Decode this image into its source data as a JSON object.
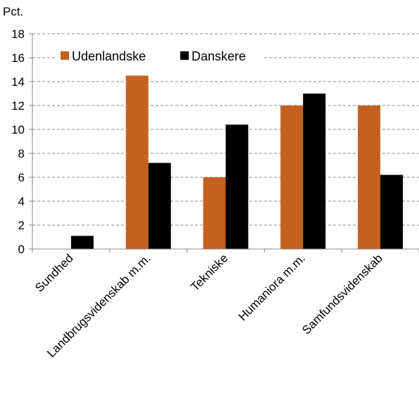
{
  "chart_data": {
    "type": "bar",
    "ylabel": "Pct.",
    "xlabel": "",
    "ylim": [
      0,
      18
    ],
    "yticks": [
      0,
      2,
      4,
      6,
      8,
      10,
      12,
      14,
      16,
      18
    ],
    "grid": true,
    "legend_position": "top-left",
    "categories": [
      "Sundhed",
      "Landbrugsvidenskab m.m.",
      "Tekniske",
      "Humaniora m.m.",
      "Samfundsvidenskab"
    ],
    "series": [
      {
        "name": "Udenlandske",
        "color": "#C5601E",
        "values": [
          0,
          14.5,
          6.0,
          12.0,
          12.0
        ]
      },
      {
        "name": "Danskere",
        "color": "#000000",
        "values": [
          1.1,
          7.2,
          10.4,
          13.0,
          6.2
        ]
      }
    ]
  }
}
